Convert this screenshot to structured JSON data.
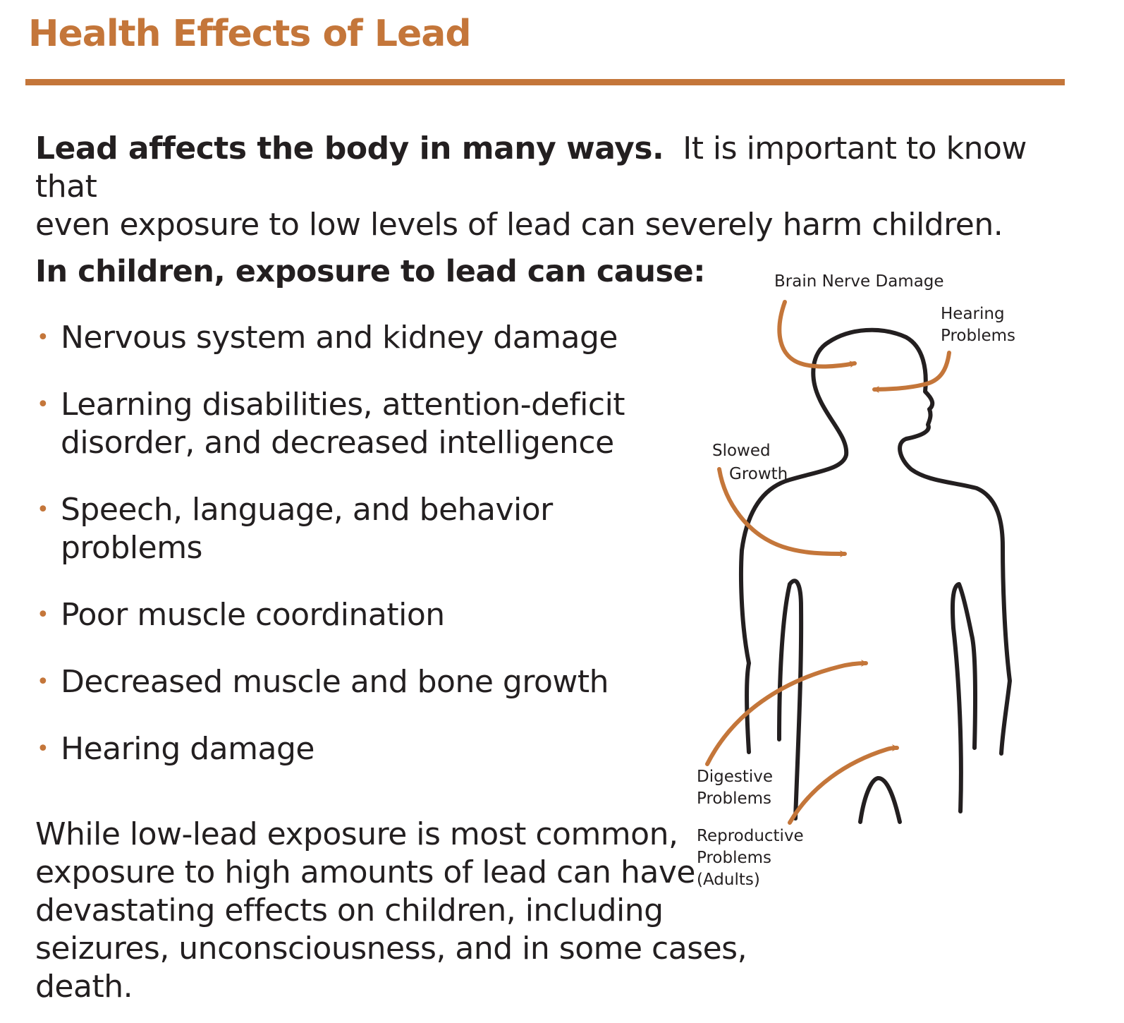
{
  "title": "Health Effects of Lead",
  "intro": {
    "bold": "Lead affects the body in many ways.",
    "line1": "It is important to know that",
    "line2": "even exposure to low levels of lead can severely harm children."
  },
  "children_heading": "In children, exposure to lead can cause:",
  "effects": [
    {
      "lines": [
        "Nervous system and kidney damage"
      ]
    },
    {
      "lines": [
        "Learning disabilities, attention-deficit",
        "disorder, and decreased intelligence"
      ]
    },
    {
      "lines": [
        "Speech, language, and behavior",
        "problems"
      ]
    },
    {
      "lines": [
        "Poor muscle coordination"
      ]
    },
    {
      "lines": [
        "Decreased muscle and bone growth"
      ]
    },
    {
      "lines": [
        "Hearing damage"
      ]
    }
  ],
  "closing": {
    "line1": "While low-lead exposure is most common,",
    "line2": "exposure to high amounts of lead can have",
    "line3": "devastating effects on children, including",
    "line4": "seizures, unconsciousness, and in some cases, death."
  },
  "figure": {
    "labels": {
      "brain": "Brain Nerve Damage",
      "hearing_1": "Hearing",
      "hearing_2": "Problems",
      "growth_1": "Slowed",
      "growth_2": "Growth",
      "digestive_1": "Digestive",
      "digestive_2": "Problems",
      "reproductive_1": "Reproductive",
      "reproductive_2": "Problems",
      "reproductive_3": "(Adults)"
    }
  },
  "colors": {
    "accent": "#c4763a",
    "text": "#231f20"
  }
}
